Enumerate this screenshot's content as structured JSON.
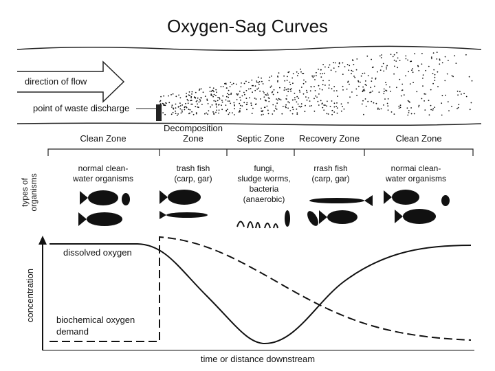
{
  "title": "Oxygen-Sag Curves",
  "river": {
    "flow_label": "direction of flow",
    "discharge_label": "point of waste discharge"
  },
  "zones": [
    {
      "lines": [
        "Clean Zone"
      ]
    },
    {
      "lines": [
        "Decomposition",
        "Zone"
      ]
    },
    {
      "lines": [
        "Septic Zone"
      ]
    },
    {
      "lines": [
        "Recovery Zone"
      ]
    },
    {
      "lines": [
        "Clean Zone"
      ]
    }
  ],
  "organisms": [
    {
      "lines": [
        "normal clean-",
        "water organisms"
      ]
    },
    {
      "lines": [
        "trash fish",
        "(carp, gar)"
      ]
    },
    {
      "lines": [
        "fungi,",
        "sludge worms,",
        "bacteria",
        "(anaerobic)"
      ]
    },
    {
      "lines": [
        "rrash fish",
        "(carp, gar)"
      ]
    },
    {
      "lines": [
        "normai clean-",
        "water organisms"
      ]
    }
  ],
  "axes": {
    "organisms_label": [
      "types of",
      "organisms"
    ],
    "y_label": "concentration",
    "x_label": "time or distance downstream"
  },
  "curves": {
    "dissolved_oxygen": "dissolved oxygen",
    "bod": [
      "biochemical oxygen",
      "demand"
    ]
  }
}
